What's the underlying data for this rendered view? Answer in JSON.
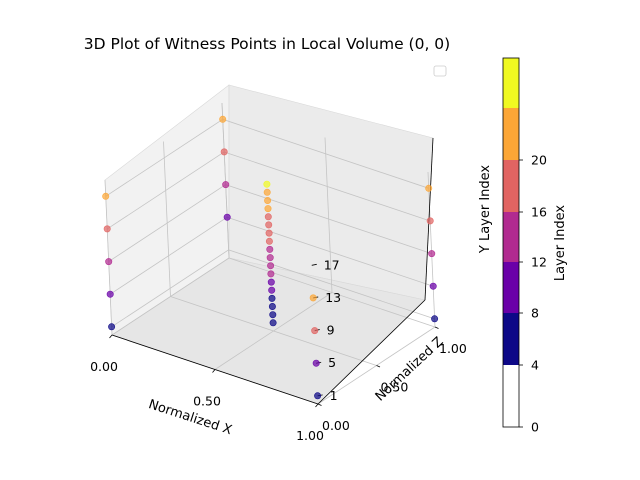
{
  "chart_data": {
    "type": "scatter",
    "title": "3D Plot of Witness Points in Local Volume (0, 0)",
    "xlabel": "Normalized X",
    "zlabel": "Normalized Z",
    "ylabel": "Y Layer Index",
    "x_ticks": [
      "0.00",
      "0.50",
      "1.00"
    ],
    "z_ticks": [
      "0.00",
      "0.50",
      "1.00"
    ],
    "y_ticks": [
      "1",
      "5",
      "9",
      "13",
      "17"
    ],
    "xlim": [
      0,
      1
    ],
    "zlim": [
      0,
      1
    ],
    "ylim": [
      0,
      19
    ],
    "grid": true,
    "legend": "top-right (empty)",
    "colorbar": {
      "label": "Layer Index",
      "ticks": [
        "0",
        "4",
        "8",
        "12",
        "16",
        "20"
      ],
      "bounds": [
        0,
        4,
        6,
        8,
        10,
        12,
        14,
        16,
        18,
        20
      ],
      "colors": [
        "#ffffff",
        "#0d0887",
        "#6a00a8",
        "#b12a90",
        "#e16462",
        "#fca636",
        "#f0f921"
      ]
    },
    "points": [
      {
        "x": 0.5,
        "z": 0.5,
        "y": 1,
        "color": "#0d0887"
      },
      {
        "x": 0.5,
        "z": 0.5,
        "y": 2,
        "color": "#0d0887"
      },
      {
        "x": 0.5,
        "z": 0.5,
        "y": 3,
        "color": "#0d0887"
      },
      {
        "x": 0.5,
        "z": 0.5,
        "y": 4,
        "color": "#0d0887"
      },
      {
        "x": 0.5,
        "z": 0.5,
        "y": 5,
        "color": "#6a00a8"
      },
      {
        "x": 0.5,
        "z": 0.5,
        "y": 6,
        "color": "#6a00a8"
      },
      {
        "x": 0.5,
        "z": 0.5,
        "y": 7,
        "color": "#b12a90"
      },
      {
        "x": 0.5,
        "z": 0.5,
        "y": 8,
        "color": "#b12a90"
      },
      {
        "x": 0.5,
        "z": 0.5,
        "y": 9,
        "color": "#b12a90"
      },
      {
        "x": 0.5,
        "z": 0.5,
        "y": 10,
        "color": "#b12a90"
      },
      {
        "x": 0.5,
        "z": 0.5,
        "y": 11,
        "color": "#e16462"
      },
      {
        "x": 0.5,
        "z": 0.5,
        "y": 12,
        "color": "#e16462"
      },
      {
        "x": 0.5,
        "z": 0.5,
        "y": 13,
        "color": "#e16462"
      },
      {
        "x": 0.5,
        "z": 0.5,
        "y": 14,
        "color": "#e16462"
      },
      {
        "x": 0.5,
        "z": 0.5,
        "y": 15,
        "color": "#fca636"
      },
      {
        "x": 0.5,
        "z": 0.5,
        "y": 16,
        "color": "#fca636"
      },
      {
        "x": 0.5,
        "z": 0.5,
        "y": 17,
        "color": "#fca636"
      },
      {
        "x": 0.5,
        "z": 0.5,
        "y": 18,
        "color": "#f0f921"
      },
      {
        "x": 0.0,
        "z": 0.0,
        "y": 1,
        "color": "#0d0887"
      },
      {
        "x": 0.0,
        "z": 0.0,
        "y": 5,
        "color": "#6a00a8"
      },
      {
        "x": 0.0,
        "z": 0.0,
        "y": 9,
        "color": "#b12a90"
      },
      {
        "x": 0.0,
        "z": 0.0,
        "y": 13,
        "color": "#e16462"
      },
      {
        "x": 0.0,
        "z": 0.0,
        "y": 17,
        "color": "#fca636"
      },
      {
        "x": 0.0,
        "z": 1.0,
        "y": 5,
        "color": "#6a00a8"
      },
      {
        "x": 0.0,
        "z": 1.0,
        "y": 9,
        "color": "#b12a90"
      },
      {
        "x": 0.0,
        "z": 1.0,
        "y": 13,
        "color": "#e16462"
      },
      {
        "x": 0.0,
        "z": 1.0,
        "y": 17,
        "color": "#fca636"
      },
      {
        "x": 1.0,
        "z": 0.0,
        "y": 1,
        "color": "#0d0887"
      },
      {
        "x": 1.0,
        "z": 0.0,
        "y": 5,
        "color": "#6a00a8"
      },
      {
        "x": 1.0,
        "z": 0.0,
        "y": 9,
        "color": "#e16462"
      },
      {
        "x": 1.0,
        "z": 0.0,
        "y": 13,
        "color": "#fca636"
      },
      {
        "x": 1.0,
        "z": 1.0,
        "y": 1,
        "color": "#0d0887"
      },
      {
        "x": 1.0,
        "z": 1.0,
        "y": 5,
        "color": "#6a00a8"
      },
      {
        "x": 1.0,
        "z": 1.0,
        "y": 9,
        "color": "#b12a90"
      },
      {
        "x": 1.0,
        "z": 1.0,
        "y": 13,
        "color": "#e16462"
      },
      {
        "x": 1.0,
        "z": 1.0,
        "y": 17,
        "color": "#fca636"
      }
    ]
  }
}
